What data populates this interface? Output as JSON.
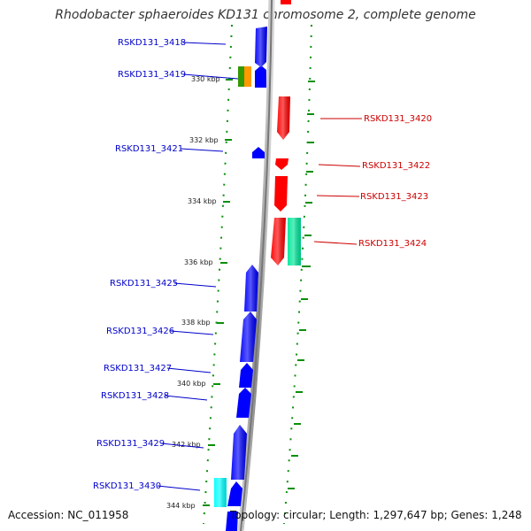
{
  "header": {
    "title": "Rhodobacter sphaeroides KD131 chromosome 2, complete genome"
  },
  "footer": {
    "accession": "Accession: NC_011958",
    "topology": "Topology: circular; Length: 1,297,647 bp; Genes: 1,248"
  },
  "colors": {
    "forward_strand": "#0000ff",
    "reverse_strand": "#ff0000",
    "backbone": "#999999",
    "tick": "#008000",
    "feature_orange": "#ff9900",
    "feature_green": "#339900",
    "feature_teal": "#00e699",
    "feature_cyan": "#00ffff"
  },
  "scale": {
    "tick_labels": [
      "330 kbp",
      "332 kbp",
      "334 kbp",
      "336 kbp",
      "338 kbp",
      "340 kbp",
      "342 kbp",
      "344 kbp"
    ]
  },
  "genes": [
    {
      "label": "RSKD131_3418",
      "strand": "forward"
    },
    {
      "label": "RSKD131_3419",
      "strand": "forward"
    },
    {
      "label": "RSKD131_3420",
      "strand": "reverse"
    },
    {
      "label": "RSKD131_3421",
      "strand": "forward"
    },
    {
      "label": "RSKD131_3422",
      "strand": "reverse"
    },
    {
      "label": "RSKD131_3423",
      "strand": "reverse"
    },
    {
      "label": "RSKD131_3424",
      "strand": "reverse"
    },
    {
      "label": "RSKD131_3425",
      "strand": "forward"
    },
    {
      "label": "RSKD131_3426",
      "strand": "forward"
    },
    {
      "label": "RSKD131_3427",
      "strand": "forward"
    },
    {
      "label": "RSKD131_3428",
      "strand": "forward"
    },
    {
      "label": "RSKD131_3429",
      "strand": "forward"
    },
    {
      "label": "RSKD131_3430",
      "strand": "forward"
    }
  ]
}
